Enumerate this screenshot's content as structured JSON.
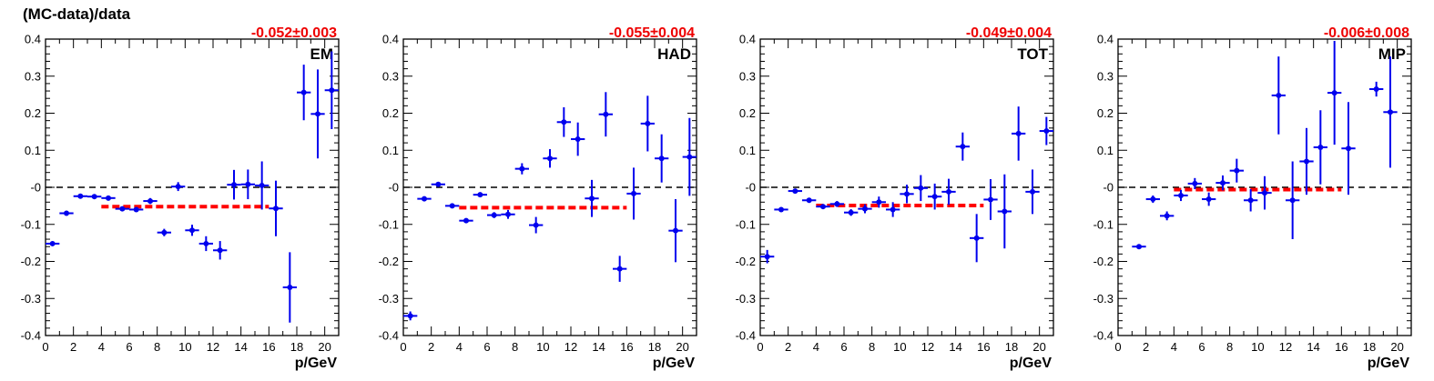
{
  "figure": {
    "title": "(MC-data)/data",
    "colors": {
      "points": "#0000ee",
      "fit": "#ff0000",
      "fit_text": "#ee0000",
      "zero_line": "#000000"
    }
  },
  "chart_data": [
    {
      "type": "scatter",
      "panel_label": "EM",
      "fit_label": "-0.052±0.003",
      "fit": {
        "value": -0.052,
        "x_range": [
          4,
          16
        ]
      },
      "xlabel": "p/GeV",
      "ylabel": "",
      "xlim": [
        0,
        21
      ],
      "ylim": [
        -0.4,
        0.4
      ],
      "xticks": [
        0,
        2,
        4,
        6,
        8,
        10,
        12,
        14,
        16,
        18,
        20
      ],
      "yticks": [
        -0.4,
        -0.3,
        -0.2,
        -0.1,
        0,
        0.1,
        0.2,
        0.3,
        0.4
      ],
      "ytick_labels": [
        "-0.4",
        "-0.3",
        "-0.2",
        "-0.1",
        "-0",
        "0.1",
        "0.2",
        "0.3",
        "0.4"
      ],
      "zero_line": true,
      "points": [
        {
          "x": 0.5,
          "y": -0.152,
          "err": 0.005
        },
        {
          "x": 1.5,
          "y": -0.07,
          "err": 0.004
        },
        {
          "x": 2.5,
          "y": -0.024,
          "err": 0.003
        },
        {
          "x": 3.5,
          "y": -0.025,
          "err": 0.003
        },
        {
          "x": 4.5,
          "y": -0.029,
          "err": 0.004
        },
        {
          "x": 5.5,
          "y": -0.058,
          "err": 0.005
        },
        {
          "x": 6.5,
          "y": -0.06,
          "err": 0.006
        },
        {
          "x": 7.5,
          "y": -0.037,
          "err": 0.008
        },
        {
          "x": 8.5,
          "y": -0.122,
          "err": 0.01
        },
        {
          "x": 9.5,
          "y": 0.002,
          "err": 0.012
        },
        {
          "x": 10.5,
          "y": -0.116,
          "err": 0.015
        },
        {
          "x": 11.5,
          "y": -0.152,
          "err": 0.02
        },
        {
          "x": 12.5,
          "y": -0.17,
          "err": 0.025
        },
        {
          "x": 13.5,
          "y": 0.007,
          "err": 0.04
        },
        {
          "x": 14.5,
          "y": 0.008,
          "err": 0.04
        },
        {
          "x": 15.5,
          "y": 0.005,
          "err": 0.065
        },
        {
          "x": 16.5,
          "y": -0.057,
          "err": 0.075
        },
        {
          "x": 17.5,
          "y": -0.27,
          "err": 0.095
        },
        {
          "x": 18.5,
          "y": 0.256,
          "err": 0.075
        },
        {
          "x": 19.5,
          "y": 0.198,
          "err": 0.12
        },
        {
          "x": 20.5,
          "y": 0.262,
          "err": 0.105
        }
      ]
    },
    {
      "type": "scatter",
      "panel_label": "HAD",
      "fit_label": "-0.055±0.004",
      "fit": {
        "value": -0.055,
        "x_range": [
          4,
          16
        ]
      },
      "xlabel": "p/GeV",
      "ylabel": "",
      "xlim": [
        0,
        21
      ],
      "ylim": [
        -0.4,
        0.4
      ],
      "xticks": [
        0,
        2,
        4,
        6,
        8,
        10,
        12,
        14,
        16,
        18,
        20
      ],
      "yticks": [
        -0.4,
        -0.3,
        -0.2,
        -0.1,
        0,
        0.1,
        0.2,
        0.3,
        0.4
      ],
      "ytick_labels": [
        "-0.4",
        "-0.3",
        "-0.2",
        "-0.1",
        "-0",
        "0.1",
        "0.2",
        "0.3",
        "0.4"
      ],
      "zero_line": true,
      "points": [
        {
          "x": 0.5,
          "y": -0.347,
          "err": 0.012
        },
        {
          "x": 1.5,
          "y": -0.031,
          "err": 0.006
        },
        {
          "x": 2.5,
          "y": 0.008,
          "err": 0.006
        },
        {
          "x": 3.5,
          "y": -0.05,
          "err": 0.005
        },
        {
          "x": 4.5,
          "y": -0.09,
          "err": 0.005
        },
        {
          "x": 5.5,
          "y": -0.02,
          "err": 0.006
        },
        {
          "x": 6.5,
          "y": -0.075,
          "err": 0.008
        },
        {
          "x": 7.5,
          "y": -0.073,
          "err": 0.012
        },
        {
          "x": 8.5,
          "y": 0.05,
          "err": 0.015
        },
        {
          "x": 9.5,
          "y": -0.102,
          "err": 0.022
        },
        {
          "x": 10.5,
          "y": 0.078,
          "err": 0.025
        },
        {
          "x": 11.5,
          "y": 0.176,
          "err": 0.04
        },
        {
          "x": 12.5,
          "y": 0.13,
          "err": 0.045
        },
        {
          "x": 13.5,
          "y": -0.03,
          "err": 0.05
        },
        {
          "x": 14.5,
          "y": 0.197,
          "err": 0.06
        },
        {
          "x": 15.5,
          "y": -0.22,
          "err": 0.035
        },
        {
          "x": 16.5,
          "y": -0.017,
          "err": 0.07
        },
        {
          "x": 17.5,
          "y": 0.172,
          "err": 0.075
        },
        {
          "x": 18.5,
          "y": 0.078,
          "err": 0.065
        },
        {
          "x": 19.5,
          "y": -0.117,
          "err": 0.085
        },
        {
          "x": 20.5,
          "y": 0.082,
          "err": 0.105
        }
      ]
    },
    {
      "type": "scatter",
      "panel_label": "TOT",
      "fit_label": "-0.049±0.004",
      "fit": {
        "value": -0.049,
        "x_range": [
          4,
          16
        ]
      },
      "xlabel": "p/GeV",
      "ylabel": "",
      "xlim": [
        0,
        21
      ],
      "ylim": [
        -0.4,
        0.4
      ],
      "xticks": [
        0,
        2,
        4,
        6,
        8,
        10,
        12,
        14,
        16,
        18,
        20
      ],
      "yticks": [
        -0.4,
        -0.3,
        -0.2,
        -0.1,
        0,
        0.1,
        0.2,
        0.3,
        0.4
      ],
      "ytick_labels": [
        "-0.4",
        "-0.3",
        "-0.2",
        "-0.1",
        "-0",
        "0.1",
        "0.2",
        "0.3",
        "0.4"
      ],
      "zero_line": true,
      "points": [
        {
          "x": 0.5,
          "y": -0.187,
          "err": 0.018
        },
        {
          "x": 1.5,
          "y": -0.06,
          "err": 0.006
        },
        {
          "x": 2.5,
          "y": -0.01,
          "err": 0.006
        },
        {
          "x": 3.5,
          "y": -0.035,
          "err": 0.005
        },
        {
          "x": 4.5,
          "y": -0.052,
          "err": 0.006
        },
        {
          "x": 5.5,
          "y": -0.045,
          "err": 0.008
        },
        {
          "x": 6.5,
          "y": -0.068,
          "err": 0.009
        },
        {
          "x": 7.5,
          "y": -0.058,
          "err": 0.012
        },
        {
          "x": 8.5,
          "y": -0.04,
          "err": 0.015
        },
        {
          "x": 9.5,
          "y": -0.06,
          "err": 0.02
        },
        {
          "x": 10.5,
          "y": -0.018,
          "err": 0.025
        },
        {
          "x": 11.5,
          "y": -0.002,
          "err": 0.035
        },
        {
          "x": 12.5,
          "y": -0.025,
          "err": 0.035
        },
        {
          "x": 13.5,
          "y": -0.012,
          "err": 0.035
        },
        {
          "x": 14.5,
          "y": 0.11,
          "err": 0.038
        },
        {
          "x": 15.5,
          "y": -0.137,
          "err": 0.065
        },
        {
          "x": 16.5,
          "y": -0.033,
          "err": 0.055
        },
        {
          "x": 17.5,
          "y": -0.065,
          "err": 0.1
        },
        {
          "x": 18.5,
          "y": 0.145,
          "err": 0.073
        },
        {
          "x": 19.5,
          "y": -0.012,
          "err": 0.06
        },
        {
          "x": 20.5,
          "y": 0.152,
          "err": 0.038
        }
      ]
    },
    {
      "type": "scatter",
      "panel_label": "MIP",
      "fit_label": "-0.006±0.008",
      "fit": {
        "value": -0.006,
        "x_range": [
          4,
          16
        ]
      },
      "xlabel": "p/GeV",
      "ylabel": "",
      "xlim": [
        0,
        21
      ],
      "ylim": [
        -0.4,
        0.4
      ],
      "xticks": [
        0,
        2,
        4,
        6,
        8,
        10,
        12,
        14,
        16,
        18,
        20
      ],
      "yticks": [
        -0.4,
        -0.3,
        -0.2,
        -0.1,
        0,
        0.1,
        0.2,
        0.3,
        0.4
      ],
      "ytick_labels": [
        "-0.4",
        "-0.3",
        "-0.2",
        "-0.1",
        "-0",
        "0.1",
        "0.2",
        "0.3",
        "0.4"
      ],
      "zero_line": true,
      "points": [
        {
          "x": 1.5,
          "y": -0.16,
          "err": 0.005
        },
        {
          "x": 2.5,
          "y": -0.032,
          "err": 0.01
        },
        {
          "x": 3.5,
          "y": -0.077,
          "err": 0.012
        },
        {
          "x": 4.5,
          "y": -0.022,
          "err": 0.015
        },
        {
          "x": 5.5,
          "y": 0.01,
          "err": 0.015
        },
        {
          "x": 6.5,
          "y": -0.032,
          "err": 0.018
        },
        {
          "x": 7.5,
          "y": 0.012,
          "err": 0.02
        },
        {
          "x": 8.5,
          "y": 0.045,
          "err": 0.032
        },
        {
          "x": 9.5,
          "y": -0.035,
          "err": 0.03
        },
        {
          "x": 10.5,
          "y": -0.015,
          "err": 0.045
        },
        {
          "x": 11.5,
          "y": 0.248,
          "err": 0.105
        },
        {
          "x": 12.5,
          "y": -0.035,
          "err": 0.105
        },
        {
          "x": 13.5,
          "y": 0.07,
          "err": 0.09
        },
        {
          "x": 14.5,
          "y": 0.108,
          "err": 0.1
        },
        {
          "x": 15.5,
          "y": 0.255,
          "err": 0.14
        },
        {
          "x": 16.5,
          "y": 0.105,
          "err": 0.125
        },
        {
          "x": 18.5,
          "y": 0.265,
          "err": 0.02
        },
        {
          "x": 19.5,
          "y": 0.203,
          "err": 0.15
        }
      ]
    }
  ]
}
